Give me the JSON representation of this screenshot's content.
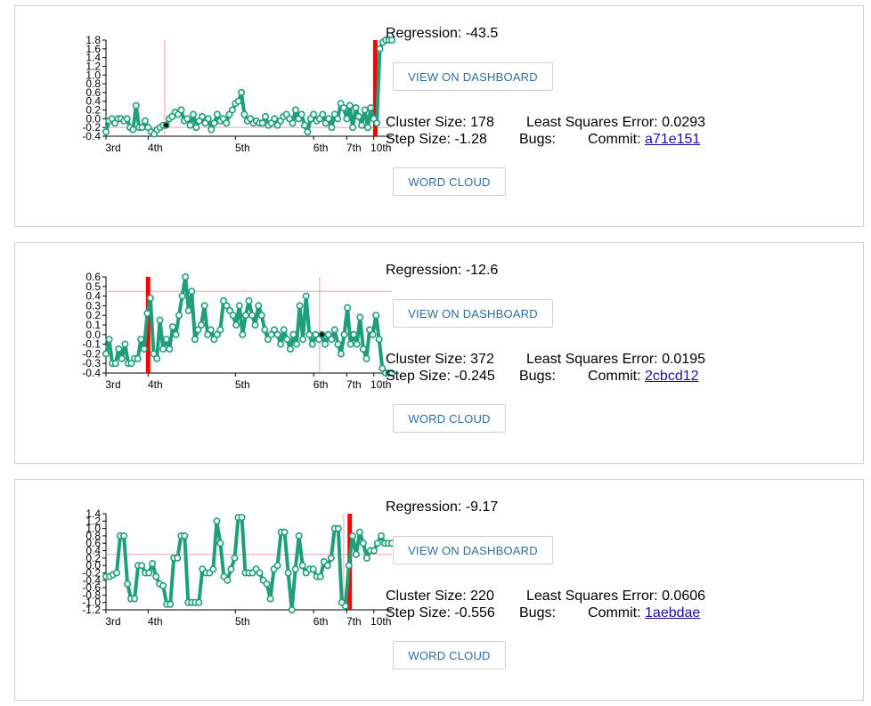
{
  "colors": {
    "line": "#1f9e7a",
    "marker_fill": "#ffffff",
    "step_marker": "#ff0000",
    "crosshair": "#f4a0a0",
    "highlight_point": "#000000",
    "button_text": "#2f6f9f",
    "link": "#1a0dab"
  },
  "clusters": [
    {
      "regression_label": "Regression:",
      "regression_value": "-43.5",
      "view_dashboard_label": "VIEW ON DASHBOARD",
      "word_cloud_label": "WORD CLOUD",
      "cluster_size_label": "Cluster Size:",
      "cluster_size": "178",
      "step_size_label": "Step Size:",
      "step_size": "-1.28",
      "lse_label": "Least Squares Error:",
      "lse": "0.0293",
      "bugs_label": "Bugs:",
      "commit_label": "Commit:",
      "commit": "a71e151",
      "chart_data": {
        "type": "line",
        "x_tick_labels": [
          "3rd",
          "4th",
          "5th",
          "6th",
          "7th",
          "10th"
        ],
        "x_tick_positions": [
          0,
          14,
          43,
          69,
          80,
          89
        ],
        "y_tick_labels": [
          "1.8",
          "1.6",
          "1.4",
          "1.2",
          "1.0",
          "0.8",
          "0.6",
          "0.4",
          "0.2",
          "0.0",
          "-0.2",
          "-0.4"
        ],
        "ylim": [
          -0.4,
          1.8
        ],
        "xlim": [
          0,
          95
        ],
        "step_x": 89.5,
        "crosshair_x": 19.5,
        "crosshair_y": -0.2,
        "highlight_index": 20,
        "values": [
          -0.3,
          -0.05,
          0.0,
          -0.1,
          0.0,
          0.0,
          -0.05,
          0.0,
          -0.2,
          -0.25,
          0.3,
          -0.2,
          -0.2,
          -0.05,
          -0.2,
          -0.3,
          -0.35,
          -0.25,
          -0.2,
          -0.15,
          -0.15,
          0.0,
          0.05,
          0.15,
          0.1,
          0.2,
          -0.05,
          0.0,
          -0.15,
          0.1,
          -0.2,
          -0.05,
          0.05,
          -0.1,
          0.0,
          -0.25,
          -0.1,
          0.1,
          -0.05,
          0.0,
          -0.1,
          0.1,
          0.2,
          0.35,
          0.4,
          0.6,
          0.1,
          -0.05,
          0.0,
          -0.1,
          -0.05,
          -0.1,
          -0.1,
          0.05,
          -0.15,
          -0.1,
          0.0,
          -0.15,
          -0.05,
          0.05,
          0.1,
          0.0,
          -0.1,
          0.2,
          0.0,
          0.1,
          -0.15,
          -0.3,
          0.0,
          0.1,
          -0.05,
          0.0,
          0.1,
          -0.1,
          0.0,
          -0.2,
          0.1,
          0.0,
          0.35,
          0.25,
          0.0,
          0.3,
          -0.2,
          0.25,
          0.05,
          -0.15,
          0.2,
          -0.2,
          0.25,
          0.0,
          -0.1,
          1.6,
          1.75,
          1.8,
          1.8,
          1.8
        ]
      }
    },
    {
      "regression_label": "Regression:",
      "regression_value": "-12.6",
      "view_dashboard_label": "VIEW ON DASHBOARD",
      "word_cloud_label": "WORD CLOUD",
      "cluster_size_label": "Cluster Size:",
      "cluster_size": "372",
      "step_size_label": "Step Size:",
      "step_size": "-0.245",
      "lse_label": "Least Squares Error:",
      "lse": "0.0195",
      "bugs_label": "Bugs:",
      "commit_label": "Commit:",
      "commit": "2cbcd12",
      "chart_data": {
        "type": "line",
        "x_tick_labels": [
          "3rd",
          "4th",
          "5th",
          "6th",
          "7th",
          "10th"
        ],
        "x_tick_positions": [
          0,
          14,
          43,
          69,
          80,
          89
        ],
        "y_tick_labels": [
          "0.6",
          "0.5",
          "0.4",
          "0.3",
          "0.2",
          "0.1",
          "0.0",
          "-0.1",
          "-0.2",
          "-0.3",
          "-0.4"
        ],
        "ylim": [
          -0.4,
          0.6
        ],
        "xlim": [
          0,
          95
        ],
        "step_x": 14,
        "crosshair_x": 71,
        "crosshair_y": 0.45,
        "highlight_index": 68,
        "values": [
          -0.2,
          -0.05,
          -0.3,
          -0.3,
          -0.15,
          -0.25,
          -0.1,
          -0.3,
          -0.3,
          -0.25,
          -0.25,
          -0.05,
          -0.15,
          0.22,
          0.38,
          -0.2,
          -0.25,
          0.15,
          -0.15,
          -0.05,
          -0.15,
          0.08,
          0.0,
          0.2,
          0.4,
          0.6,
          0.25,
          0.45,
          -0.05,
          0.05,
          0.1,
          0.3,
          0.0,
          0.05,
          -0.05,
          0.0,
          0.05,
          0.35,
          0.3,
          0.25,
          0.2,
          0.1,
          0.3,
          0.0,
          0.2,
          0.35,
          0.2,
          0.1,
          0.3,
          0.2,
          0.05,
          -0.05,
          0.0,
          0.05,
          0.0,
          -0.1,
          0.05,
          -0.05,
          -0.15,
          0.0,
          -0.1,
          0.3,
          -0.05,
          0.4,
          0.0,
          -0.1,
          0.0,
          -0.05,
          0.0,
          -0.1,
          0.0,
          -0.05,
          0.05,
          -0.1,
          -0.2,
          0.0,
          0.28,
          -0.1,
          0.0,
          -0.1,
          0.18,
          -0.15,
          -0.25,
          0.05,
          0.0,
          0.2,
          -0.05,
          -0.35,
          -0.4,
          -0.4,
          -0.4
        ]
      }
    },
    {
      "regression_label": "Regression:",
      "regression_value": "-9.17",
      "view_dashboard_label": "VIEW ON DASHBOARD",
      "word_cloud_label": "WORD CLOUD",
      "cluster_size_label": "Cluster Size:",
      "cluster_size": "220",
      "step_size_label": "Step Size:",
      "step_size": "-0.556",
      "lse_label": "Least Squares Error:",
      "lse": "0.0606",
      "bugs_label": "Bugs:",
      "commit_label": "Commit:",
      "commit": "1aebdae",
      "chart_data": {
        "type": "line",
        "x_tick_labels": [
          "3rd",
          "4th",
          "5th",
          "6th",
          "7th",
          "10th"
        ],
        "x_tick_positions": [
          0,
          14,
          43,
          69,
          80,
          89
        ],
        "y_tick_labels": [
          "1.4",
          "1.2",
          "1.0",
          "0.8",
          "0.6",
          "0.4",
          "0.2",
          "0.0",
          "-0.2",
          "-0.4",
          "-0.6",
          "-0.8",
          "-1.0",
          "-1.2"
        ],
        "ylim": [
          -1.2,
          1.4
        ],
        "xlim": [
          0,
          95
        ],
        "step_x": 81,
        "crosshair_x": 79,
        "crosshair_y": 0.3,
        "highlight_index": -1,
        "values": [
          -0.3,
          -0.3,
          -0.25,
          -0.2,
          0.8,
          0.8,
          -0.5,
          -0.9,
          -0.9,
          0.0,
          0.0,
          -0.2,
          -0.2,
          0.05,
          -0.3,
          -0.5,
          -0.55,
          -1.05,
          -1.05,
          0.2,
          0.2,
          0.8,
          0.8,
          -1.0,
          -1.0,
          -1.0,
          -1.0,
          -0.1,
          -0.2,
          -0.2,
          -0.1,
          1.2,
          0.6,
          -0.3,
          -0.4,
          -0.1,
          0.2,
          1.3,
          1.3,
          -0.2,
          -0.2,
          -0.2,
          -0.1,
          -0.2,
          -0.4,
          -0.5,
          -0.9,
          -0.1,
          0.0,
          0.9,
          0.9,
          -0.2,
          -1.2,
          -0.1,
          0.8,
          0.0,
          -0.2,
          -0.1,
          -0.1,
          -0.3,
          -0.3,
          0.1,
          0.0,
          0.2,
          1.0,
          1.0,
          -1.0,
          -1.1,
          0.0,
          0.8,
          0.3,
          0.9,
          0.6,
          0.2,
          0.4,
          0.4,
          0.6,
          0.8,
          0.6,
          0.6,
          0.6
        ]
      }
    }
  ]
}
